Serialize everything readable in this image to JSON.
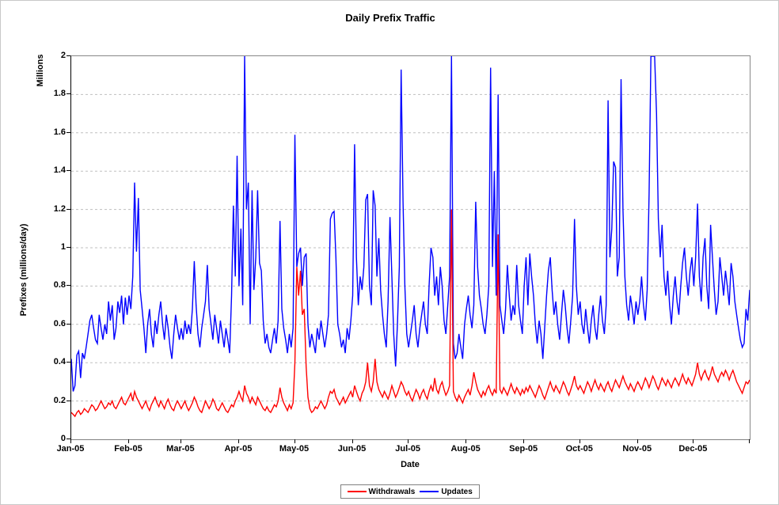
{
  "title": "Daily Prefix Traffic",
  "axes": {
    "y_top_label": "Millions",
    "y_axis_label": "Prefixes (millions/day)",
    "x_axis_label": "Date",
    "y_ticks": [
      "2",
      "1.8",
      "1.6",
      "1.4",
      "1.2",
      "1",
      "0.8",
      "0.6",
      "0.4",
      "0.2",
      "0"
    ],
    "x_ticks": [
      "Jan-05",
      "Feb-05",
      "Mar-05",
      "Apr-05",
      "May-05",
      "Jun-05",
      "Jul-05",
      "Aug-05",
      "Sep-05",
      "Oct-05",
      "Nov-05",
      "Dec-05"
    ]
  },
  "legend": [
    {
      "label": "Withdrawals",
      "color": "#ff0000"
    },
    {
      "label": "Updates",
      "color": "#0000ff"
    }
  ],
  "chart_data": {
    "type": "line",
    "title": "Daily Prefix Traffic",
    "xlabel": "Date",
    "ylabel": "Prefixes (millions/day)",
    "y_units": "Millions",
    "ylim": [
      0,
      2
    ],
    "y_grid_step": 0.2,
    "grid": "horizontal-dashed",
    "legend_position": "bottom-center",
    "x_unit": "day of year 2005 (daily samples)",
    "x_tick_days": [
      0,
      31,
      59,
      90,
      120,
      151,
      181,
      212,
      243,
      273,
      304,
      334
    ],
    "x_tick_labels": [
      "Jan-05",
      "Feb-05",
      "Mar-05",
      "Apr-05",
      "May-05",
      "Jun-05",
      "Jul-05",
      "Aug-05",
      "Sep-05",
      "Oct-05",
      "Nov-05",
      "Dec-05"
    ],
    "series": [
      {
        "name": "Withdrawals",
        "color": "#ff0000",
        "values": [
          0.14,
          0.13,
          0.12,
          0.14,
          0.15,
          0.13,
          0.14,
          0.16,
          0.15,
          0.14,
          0.16,
          0.18,
          0.17,
          0.15,
          0.16,
          0.18,
          0.2,
          0.18,
          0.16,
          0.17,
          0.19,
          0.18,
          0.2,
          0.17,
          0.16,
          0.18,
          0.2,
          0.22,
          0.19,
          0.18,
          0.2,
          0.22,
          0.24,
          0.2,
          0.25,
          0.22,
          0.2,
          0.18,
          0.16,
          0.18,
          0.2,
          0.17,
          0.15,
          0.18,
          0.2,
          0.22,
          0.19,
          0.17,
          0.2,
          0.18,
          0.16,
          0.19,
          0.21,
          0.18,
          0.16,
          0.15,
          0.18,
          0.2,
          0.18,
          0.16,
          0.18,
          0.2,
          0.17,
          0.15,
          0.17,
          0.19,
          0.22,
          0.2,
          0.17,
          0.15,
          0.14,
          0.17,
          0.2,
          0.18,
          0.16,
          0.18,
          0.21,
          0.19,
          0.16,
          0.15,
          0.17,
          0.19,
          0.17,
          0.15,
          0.14,
          0.16,
          0.18,
          0.17,
          0.2,
          0.22,
          0.25,
          0.22,
          0.2,
          0.28,
          0.24,
          0.22,
          0.19,
          0.22,
          0.2,
          0.18,
          0.22,
          0.2,
          0.18,
          0.16,
          0.15,
          0.17,
          0.15,
          0.14,
          0.16,
          0.18,
          0.17,
          0.2,
          0.27,
          0.22,
          0.19,
          0.17,
          0.15,
          0.18,
          0.16,
          0.19,
          0.4,
          0.9,
          0.75,
          0.88,
          0.65,
          0.68,
          0.38,
          0.22,
          0.16,
          0.14,
          0.15,
          0.17,
          0.16,
          0.18,
          0.2,
          0.18,
          0.16,
          0.18,
          0.22,
          0.25,
          0.24,
          0.26,
          0.22,
          0.2,
          0.18,
          0.2,
          0.22,
          0.19,
          0.21,
          0.23,
          0.25,
          0.22,
          0.28,
          0.25,
          0.22,
          0.2,
          0.24,
          0.26,
          0.3,
          0.4,
          0.28,
          0.25,
          0.3,
          0.42,
          0.3,
          0.26,
          0.24,
          0.22,
          0.25,
          0.23,
          0.21,
          0.24,
          0.28,
          0.25,
          0.22,
          0.24,
          0.27,
          0.3,
          0.28,
          0.25,
          0.23,
          0.25,
          0.22,
          0.2,
          0.23,
          0.26,
          0.24,
          0.21,
          0.24,
          0.26,
          0.23,
          0.21,
          0.25,
          0.28,
          0.25,
          0.32,
          0.26,
          0.24,
          0.28,
          0.3,
          0.26,
          0.23,
          0.25,
          0.28,
          1.2,
          0.25,
          0.22,
          0.2,
          0.23,
          0.21,
          0.19,
          0.22,
          0.24,
          0.26,
          0.23,
          0.28,
          0.35,
          0.3,
          0.26,
          0.24,
          0.22,
          0.25,
          0.23,
          0.26,
          0.28,
          0.25,
          0.23,
          0.26,
          0.24,
          1.07,
          0.26,
          0.24,
          0.27,
          0.25,
          0.23,
          0.26,
          0.29,
          0.26,
          0.24,
          0.27,
          0.25,
          0.23,
          0.26,
          0.24,
          0.27,
          0.25,
          0.28,
          0.26,
          0.24,
          0.22,
          0.25,
          0.28,
          0.26,
          0.23,
          0.21,
          0.24,
          0.27,
          0.3,
          0.27,
          0.25,
          0.28,
          0.26,
          0.24,
          0.27,
          0.3,
          0.28,
          0.25,
          0.23,
          0.26,
          0.29,
          0.33,
          0.28,
          0.26,
          0.28,
          0.26,
          0.24,
          0.27,
          0.3,
          0.28,
          0.25,
          0.28,
          0.31,
          0.28,
          0.26,
          0.29,
          0.27,
          0.25,
          0.28,
          0.3,
          0.27,
          0.25,
          0.28,
          0.31,
          0.29,
          0.27,
          0.3,
          0.33,
          0.3,
          0.28,
          0.26,
          0.29,
          0.27,
          0.25,
          0.28,
          0.3,
          0.28,
          0.26,
          0.29,
          0.32,
          0.3,
          0.27,
          0.3,
          0.33,
          0.31,
          0.28,
          0.26,
          0.29,
          0.32,
          0.3,
          0.28,
          0.31,
          0.29,
          0.27,
          0.3,
          0.32,
          0.3,
          0.28,
          0.31,
          0.34,
          0.31,
          0.29,
          0.32,
          0.3,
          0.28,
          0.31,
          0.34,
          0.4,
          0.34,
          0.31,
          0.34,
          0.36,
          0.33,
          0.31,
          0.34,
          0.38,
          0.34,
          0.32,
          0.3,
          0.33,
          0.35,
          0.33,
          0.36,
          0.34,
          0.31,
          0.34,
          0.36,
          0.33,
          0.3,
          0.28,
          0.26,
          0.24,
          0.27,
          0.3,
          0.29,
          0.31
        ]
      },
      {
        "name": "Updates",
        "color": "#0000ff",
        "values": [
          0.42,
          0.25,
          0.28,
          0.44,
          0.46,
          0.32,
          0.45,
          0.42,
          0.48,
          0.55,
          0.62,
          0.65,
          0.58,
          0.52,
          0.5,
          0.65,
          0.58,
          0.52,
          0.6,
          0.55,
          0.72,
          0.62,
          0.7,
          0.52,
          0.58,
          0.72,
          0.66,
          0.75,
          0.6,
          0.74,
          0.65,
          0.75,
          0.68,
          0.85,
          1.34,
          0.98,
          1.26,
          0.78,
          0.68,
          0.58,
          0.45,
          0.6,
          0.68,
          0.55,
          0.48,
          0.62,
          0.55,
          0.65,
          0.72,
          0.6,
          0.52,
          0.65,
          0.58,
          0.48,
          0.42,
          0.55,
          0.65,
          0.58,
          0.52,
          0.58,
          0.52,
          0.62,
          0.55,
          0.6,
          0.55,
          0.68,
          0.93,
          0.7,
          0.55,
          0.48,
          0.58,
          0.65,
          0.72,
          0.91,
          0.68,
          0.6,
          0.52,
          0.65,
          0.58,
          0.5,
          0.62,
          0.55,
          0.48,
          0.58,
          0.52,
          0.45,
          0.75,
          1.22,
          0.85,
          1.48,
          0.8,
          1.1,
          0.7,
          2.0,
          1.2,
          1.34,
          0.6,
          1.3,
          0.78,
          0.95,
          1.3,
          0.92,
          0.88,
          0.62,
          0.5,
          0.55,
          0.48,
          0.45,
          0.52,
          0.58,
          0.5,
          0.62,
          1.14,
          0.68,
          0.58,
          0.52,
          0.45,
          0.55,
          0.48,
          0.58,
          1.59,
          0.9,
          0.97,
          1.0,
          0.8,
          0.95,
          0.97,
          0.6,
          0.48,
          0.55,
          0.5,
          0.45,
          0.58,
          0.52,
          0.62,
          0.55,
          0.48,
          0.55,
          0.65,
          1.15,
          1.18,
          1.19,
          0.95,
          0.6,
          0.55,
          0.48,
          0.52,
          0.45,
          0.58,
          0.52,
          0.62,
          0.75,
          1.54,
          0.95,
          0.7,
          0.85,
          0.78,
          0.9,
          1.25,
          1.28,
          0.8,
          0.7,
          1.3,
          1.22,
          0.85,
          1.05,
          0.78,
          0.65,
          0.55,
          0.48,
          0.72,
          1.16,
          0.85,
          0.55,
          0.38,
          0.6,
          0.9,
          1.93,
          1.24,
          0.8,
          0.55,
          0.48,
          0.55,
          0.62,
          0.7,
          0.55,
          0.48,
          0.58,
          0.65,
          0.72,
          0.6,
          0.55,
          0.8,
          1.0,
          0.95,
          0.75,
          0.85,
          0.7,
          0.9,
          0.8,
          0.62,
          0.55,
          0.7,
          0.85,
          2.0,
          0.5,
          0.42,
          0.45,
          0.55,
          0.48,
          0.42,
          0.6,
          0.68,
          0.75,
          0.65,
          0.58,
          0.7,
          1.24,
          0.9,
          0.75,
          0.68,
          0.6,
          0.55,
          0.65,
          0.8,
          1.94,
          0.9,
          1.4,
          0.75,
          1.8,
          0.7,
          0.62,
          0.55,
          0.68,
          0.91,
          0.75,
          0.62,
          0.7,
          0.65,
          0.91,
          0.7,
          0.62,
          0.55,
          0.8,
          0.95,
          0.7,
          0.97,
          0.85,
          0.75,
          0.6,
          0.5,
          0.62,
          0.55,
          0.42,
          0.58,
          0.75,
          0.88,
          0.95,
          0.78,
          0.65,
          0.72,
          0.6,
          0.52,
          0.65,
          0.78,
          0.7,
          0.58,
          0.5,
          0.62,
          0.75,
          1.15,
          0.8,
          0.65,
          0.72,
          0.6,
          0.55,
          0.68,
          0.58,
          0.5,
          0.62,
          0.7,
          0.58,
          0.52,
          0.65,
          0.75,
          0.62,
          0.55,
          0.7,
          1.77,
          0.95,
          1.1,
          1.45,
          1.42,
          0.85,
          0.95,
          1.88,
          1.2,
          0.85,
          0.7,
          0.62,
          0.75,
          0.68,
          0.6,
          0.72,
          0.65,
          0.72,
          0.85,
          0.7,
          0.62,
          0.78,
          1.28,
          2.0,
          2.0,
          2.0,
          1.7,
          1.15,
          0.95,
          1.12,
          0.85,
          0.75,
          0.88,
          0.7,
          0.6,
          0.75,
          0.85,
          0.72,
          0.65,
          0.8,
          0.92,
          1.0,
          0.85,
          0.75,
          0.88,
          0.95,
          0.8,
          0.95,
          1.23,
          0.85,
          0.72,
          0.95,
          1.05,
          0.8,
          0.68,
          1.12,
          0.95,
          0.78,
          0.65,
          0.72,
          0.95,
          0.85,
          0.75,
          0.88,
          0.8,
          0.7,
          0.92,
          0.85,
          0.72,
          0.65,
          0.58,
          0.52,
          0.48,
          0.5,
          0.68,
          0.62,
          0.78
        ]
      }
    ]
  }
}
